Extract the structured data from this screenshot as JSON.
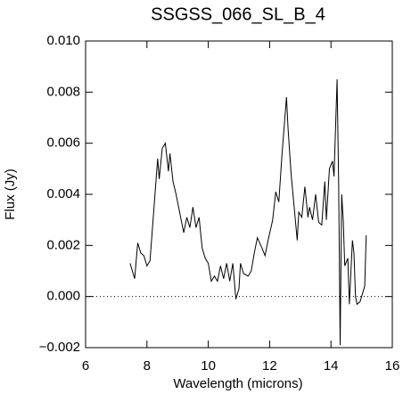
{
  "chart_data": {
    "type": "line",
    "title": "SSGSS_066_SL_B_4",
    "x_label": "Wavelength (microns)",
    "y_label": "Flux (Jy)",
    "x": [
      7.45,
      7.6,
      7.7,
      7.8,
      7.9,
      8.0,
      8.1,
      8.2,
      8.35,
      8.4,
      8.5,
      8.6,
      8.7,
      8.75,
      8.85,
      8.95,
      9.1,
      9.2,
      9.3,
      9.4,
      9.5,
      9.6,
      9.7,
      9.8,
      9.9,
      10.0,
      10.1,
      10.2,
      10.3,
      10.4,
      10.5,
      10.6,
      10.7,
      10.8,
      10.9,
      11.0,
      11.05,
      11.15,
      11.3,
      11.4,
      11.5,
      11.6,
      11.75,
      11.85,
      11.95,
      12.1,
      12.2,
      12.3,
      12.4,
      12.55,
      12.6,
      12.7,
      12.8,
      12.9,
      12.95,
      13.05,
      13.15,
      13.25,
      13.3,
      13.4,
      13.5,
      13.6,
      13.7,
      13.8,
      13.85,
      13.95,
      14.05,
      14.1,
      14.2,
      14.25,
      14.3,
      14.35,
      14.4,
      14.45,
      14.55,
      14.6,
      14.7,
      14.75,
      14.8,
      14.85,
      14.95,
      15.1,
      15.15
    ],
    "values": [
      0.0013,
      0.0007,
      0.0021,
      0.0017,
      0.0016,
      0.0012,
      0.0014,
      0.003,
      0.0054,
      0.0046,
      0.0058,
      0.006,
      0.0049,
      0.0056,
      0.0045,
      0.004,
      0.0031,
      0.0025,
      0.0031,
      0.0027,
      0.0035,
      0.0027,
      0.0031,
      0.0019,
      0.0015,
      0.0013,
      0.0006,
      0.0008,
      0.0006,
      0.0012,
      0.0007,
      0.0013,
      0.0006,
      0.0013,
      -0.0001,
      0.0003,
      0.0013,
      0.0009,
      0.0008,
      0.001,
      0.0017,
      0.0023,
      0.0019,
      0.0016,
      0.0022,
      0.003,
      0.0041,
      0.0037,
      0.0055,
      0.0078,
      0.0066,
      0.0048,
      0.0035,
      0.0022,
      0.0033,
      0.0031,
      0.0043,
      0.0031,
      0.0035,
      0.003,
      0.004,
      0.0029,
      0.0028,
      0.0045,
      0.003,
      0.005,
      0.0053,
      0.0047,
      0.0085,
      0.0045,
      -0.0019,
      0.004,
      0.003,
      0.0012,
      0.0015,
      -0.0003,
      0.0022,
      0.0017,
      0.0,
      -0.0003,
      -0.0002,
      0.0004,
      0.0024
    ],
    "color": "#000000",
    "xlim": [
      6,
      16
    ],
    "xticks": [
      6,
      8,
      10,
      12,
      14,
      16
    ],
    "ylim": [
      -0.002,
      0.01
    ],
    "yticks": [
      {
        "value": -0.002,
        "label": "−0.002"
      },
      {
        "value": 0,
        "label": "0.000"
      },
      {
        "value": 0.002,
        "label": "0.002"
      },
      {
        "value": 0.004,
        "label": "0.004"
      },
      {
        "value": 0.006,
        "label": "0.006"
      },
      {
        "value": 0.008,
        "label": "0.008"
      },
      {
        "value": 0.01,
        "label": "0.010"
      }
    ],
    "reference_line": 0
  }
}
